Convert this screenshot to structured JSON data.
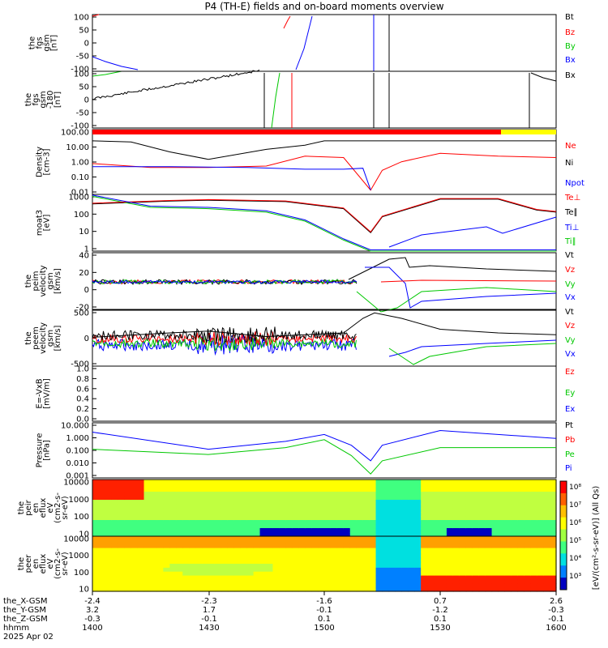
{
  "title": "P4 (TH-E) fields and on-board moments overview",
  "colors": {
    "black": "#000000",
    "red": "#ff0000",
    "green": "#00c800",
    "blue": "#0000ff",
    "yellow": "#ffff00"
  },
  "panels": [
    {
      "id": "fgs",
      "ylabel": [
        "the",
        "fgs",
        "gsm",
        "[nT]"
      ],
      "yticks": [
        "100",
        "50",
        "0",
        "-50",
        "-100"
      ],
      "legend": [
        {
          "text": "Bt",
          "color": "black"
        },
        {
          "text": "Bz",
          "color": "red"
        },
        {
          "text": "By",
          "color": "green"
        },
        {
          "text": "Bx",
          "color": "blue"
        }
      ]
    },
    {
      "id": "fgs-clip",
      "ylabel": [
        "the",
        "fgs",
        "gsm",
        "-180",
        "[nT]"
      ],
      "yticks": [
        "100",
        "50",
        "0",
        "-50",
        "-100"
      ],
      "legend": [
        {
          "text": "Bx",
          "color": "black"
        }
      ]
    },
    {
      "id": "density",
      "ylabel": [
        "Density",
        "[cm-3]"
      ],
      "yticks": [
        "100.00",
        "10.00",
        "1.00",
        "0.10",
        "0.01"
      ],
      "legend": [
        {
          "text": "Ne",
          "color": "red"
        },
        {
          "text": "Ni",
          "color": "black"
        },
        {
          "text": "Npot",
          "color": "blue"
        }
      ]
    },
    {
      "id": "temp",
      "ylabel": [
        "moat3",
        "[eV]"
      ],
      "yticks": [
        "1000",
        "100",
        "10",
        "1"
      ],
      "legend": [
        {
          "text": "Te⊥",
          "color": "red"
        },
        {
          "text": "Te∥",
          "color": "black"
        },
        {
          "text": "Ti⊥",
          "color": "blue"
        },
        {
          "text": "Ti∥",
          "color": "green"
        }
      ]
    },
    {
      "id": "peim-vel",
      "ylabel": [
        "the",
        "peim",
        "velocity",
        "gsm",
        "[km/s]"
      ],
      "yticks": [
        "40",
        "20",
        "0",
        "-20"
      ],
      "legend": [
        {
          "text": "Vt",
          "color": "black"
        },
        {
          "text": "Vz",
          "color": "red"
        },
        {
          "text": "Vy",
          "color": "green"
        },
        {
          "text": "Vx",
          "color": "blue"
        }
      ]
    },
    {
      "id": "peem-vel",
      "ylabel": [
        "the",
        "peem",
        "velocity",
        "gsm",
        "[km/s]"
      ],
      "yticks": [
        "500",
        "0",
        "-500"
      ],
      "legend": [
        {
          "text": "Vt",
          "color": "black"
        },
        {
          "text": "Vz",
          "color": "red"
        },
        {
          "text": "Vy",
          "color": "green"
        },
        {
          "text": "Vx",
          "color": "blue"
        }
      ]
    },
    {
      "id": "efield",
      "ylabel": [
        "E=-VxB",
        "[mV/m]"
      ],
      "yticks": [
        "1.0",
        "0.8",
        "0.6",
        "0.4",
        "0.2",
        "0.0"
      ],
      "legend": [
        {
          "text": "Ez",
          "color": "red"
        },
        {
          "text": "Ey",
          "color": "green"
        },
        {
          "text": "Ex",
          "color": "blue"
        }
      ]
    },
    {
      "id": "pressure",
      "ylabel": [
        "Pressure",
        "[nPa]"
      ],
      "yticks": [
        "10.000",
        "1.000",
        "0.100",
        "0.010",
        "0.001"
      ],
      "legend": [
        {
          "text": "Pt",
          "color": "black"
        },
        {
          "text": "Pb",
          "color": "red"
        },
        {
          "text": "Pe",
          "color": "green"
        },
        {
          "text": "Pi",
          "color": "blue"
        }
      ]
    },
    {
      "id": "peir-spec",
      "ylabel": [
        "the",
        "peir",
        "en",
        "eflux",
        "eV",
        "(cm2-s-",
        "sr-eV)"
      ],
      "yticks": [
        "10000",
        "1000",
        "100",
        "10"
      ],
      "legend": []
    },
    {
      "id": "peer-spec",
      "ylabel": [
        "the",
        "peer",
        "en",
        "eflux",
        "eV",
        "(cm2-s-",
        "sr-eV)"
      ],
      "yticks": [
        "10000",
        "1000",
        "100",
        "10"
      ],
      "legend": []
    }
  ],
  "colorbar": {
    "ticks": [
      "10⁸",
      "10⁷",
      "10⁶",
      "10⁵",
      "10⁴",
      "10³"
    ],
    "label": "[eV/(cm²-s-sr-eV)] (All Qs)"
  },
  "xaxis": {
    "rows": [
      {
        "label": "the_X-GSM",
        "values": [
          "-2.4",
          "-2.3",
          "-1.6",
          "0.7",
          "2.6"
        ]
      },
      {
        "label": "the_Y-GSM",
        "values": [
          "3.2",
          "1.7",
          "-0.1",
          "-1.2",
          "-0.3"
        ]
      },
      {
        "label": "the_Z-GSM",
        "values": [
          "-0.3",
          "-0.1",
          "0.1",
          "0.1",
          "-0.1"
        ]
      },
      {
        "label": "hhmm",
        "values": [
          "1400",
          "1430",
          "1500",
          "1530",
          "1600"
        ]
      }
    ],
    "date": "2025 Apr 02"
  },
  "chart_data": {
    "type": "line",
    "title": "P4 (TH-E) fields and on-board moments overview",
    "x_unit": "hhmm",
    "x_ticks": [
      "1400",
      "1430",
      "1500",
      "1530",
      "1600"
    ],
    "series": [
      {
        "panel": "density",
        "name": "Ni",
        "x": [
          1400,
          1410,
          1420,
          1430,
          1445,
          1455,
          1500,
          1505,
          1510,
          1515,
          1530,
          1545,
          1600
        ],
        "y": [
          60,
          50,
          10,
          3,
          15,
          30,
          60,
          60,
          60,
          60,
          60,
          60,
          60
        ]
      },
      {
        "panel": "density",
        "name": "Ne",
        "x": [
          1400,
          1415,
          1430,
          1445,
          1455,
          1505,
          1512,
          1515,
          1520,
          1530,
          1545,
          1600
        ],
        "y": [
          1.5,
          0.8,
          0.8,
          1.0,
          5,
          4,
          0.02,
          0.5,
          2,
          8,
          5,
          4
        ]
      },
      {
        "panel": "density",
        "name": "Npot",
        "x": [
          1400,
          1420,
          1440,
          1455,
          1505,
          1510,
          1512
        ],
        "y": [
          0.9,
          0.9,
          0.8,
          0.6,
          0.6,
          0.7,
          0.02
        ]
      },
      {
        "panel": "temp",
        "name": "Te∥",
        "x": [
          1400,
          1420,
          1430,
          1450,
          1505,
          1512,
          1515,
          1530,
          1545,
          1555,
          1600
        ],
        "y": [
          1000,
          1500,
          1700,
          1400,
          500,
          15,
          150,
          2000,
          2000,
          400,
          300
        ]
      },
      {
        "panel": "temp",
        "name": "Ti∥",
        "x": [
          1400,
          1415,
          1430,
          1445,
          1455,
          1505,
          1512,
          1520,
          1545,
          1600
        ],
        "y": [
          3000,
          600,
          500,
          300,
          80,
          5,
          1,
          1,
          1,
          1
        ]
      },
      {
        "panel": "pressure",
        "name": "Pi",
        "x": [
          1400,
          1430,
          1450,
          1500,
          1507,
          1512,
          1515,
          1530,
          1600
        ],
        "y": [
          3,
          0.15,
          0.6,
          2,
          0.3,
          0.02,
          0.3,
          4,
          1
        ]
      },
      {
        "panel": "pressure",
        "name": "Pe",
        "x": [
          1400,
          1430,
          1450,
          1500,
          1507,
          1512,
          1515,
          1530,
          1600
        ],
        "y": [
          0.15,
          0.06,
          0.2,
          0.8,
          0.05,
          0.002,
          0.02,
          0.2,
          0.2
        ]
      },
      {
        "panel": "peem-vel",
        "name": "Vt",
        "x": [
          1400,
          1420,
          1430,
          1445,
          1505,
          1510,
          1513,
          1520,
          1530,
          1545,
          1600
        ],
        "y": [
          80,
          200,
          250,
          100,
          200,
          600,
          750,
          600,
          300,
          200,
          150
        ]
      }
    ]
  }
}
